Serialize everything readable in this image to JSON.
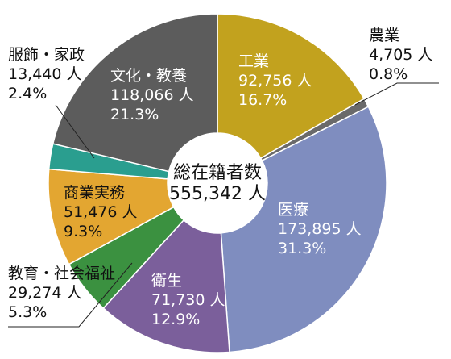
{
  "chart_data": {
    "type": "pie",
    "style": "donut",
    "center_label": {
      "title": "総在籍者数",
      "value": "555,342 人"
    },
    "unit": "人",
    "slices": [
      {
        "name": "工業",
        "value": 92756,
        "value_label": "92,756 人",
        "percent": 16.7,
        "percent_label": "16.7%",
        "color": "#c2a21e"
      },
      {
        "name": "農業",
        "value": 4705,
        "value_label": "4,705 人",
        "percent": 0.8,
        "percent_label": "0.8%",
        "color": "#6a6a6a"
      },
      {
        "name": "医療",
        "value": 173895,
        "value_label": "173,895 人",
        "percent": 31.3,
        "percent_label": "31.3%",
        "color": "#7f8dbf"
      },
      {
        "name": "衛生",
        "value": 71730,
        "value_label": "71,730 人",
        "percent": 12.9,
        "percent_label": "12.9%",
        "color": "#7b5f9b"
      },
      {
        "name": "教育・社会福祉",
        "value": 29274,
        "value_label": "29,274 人",
        "percent": 5.3,
        "percent_label": "5.3%",
        "color": "#3b9140"
      },
      {
        "name": "商業実務",
        "value": 51476,
        "value_label": "51,476 人",
        "percent": 9.3,
        "percent_label": "9.3%",
        "color": "#e3a631"
      },
      {
        "name": "服飾・家政",
        "value": 13440,
        "value_label": "13,440 人",
        "percent": 2.4,
        "percent_label": "2.4%",
        "color": "#2a9e8f"
      },
      {
        "name": "文化・教養",
        "value": 118066,
        "value_label": "118,066 人",
        "percent": 21.3,
        "percent_label": "21.3%",
        "color": "#5c5c5c"
      }
    ]
  }
}
